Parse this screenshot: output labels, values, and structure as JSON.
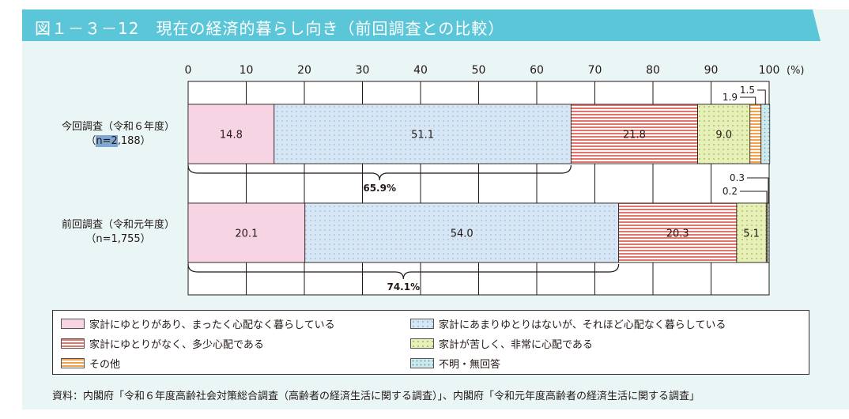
{
  "header": {
    "title": "図１－３－12　現在の経済的暮らし向き（前回調査との比較）"
  },
  "chart_data": {
    "type": "bar",
    "orientation": "horizontal",
    "stacked": true,
    "xlim": [
      0,
      100
    ],
    "x_ticks": [
      "0",
      "10",
      "20",
      "30",
      "40",
      "50",
      "60",
      "70",
      "80",
      "90",
      "100"
    ],
    "x_unit": "(%)",
    "categories": [
      {
        "label": "今回調査（令和６年度）",
        "n_prefix": "（",
        "n_highlight": "n=2",
        "n_rest": ",188）"
      },
      {
        "label": "前回調査（令和元年度）",
        "n_prefix": "（",
        "n_highlight": "",
        "n_rest": "n=1,755）"
      }
    ],
    "series": [
      {
        "name": "家計にゆとりがあり、まったく心配なく暮らしている",
        "values": [
          14.8,
          20.1
        ],
        "labels": [
          "14.8",
          "20.1"
        ],
        "pattern": "solid",
        "color": "#f7d4e3"
      },
      {
        "name": "家計にあまりゆとりはないが、それほど心配なく暮らしている",
        "values": [
          51.1,
          54.0
        ],
        "labels": [
          "51.1",
          "54.0"
        ],
        "pattern": "dots",
        "color": "#d6e6f5"
      },
      {
        "name": "家計にゆとりがなく、多少心配である",
        "values": [
          21.8,
          20.3
        ],
        "labels": [
          "21.8",
          "20.3"
        ],
        "pattern": "stripes",
        "color": "#e5746a"
      },
      {
        "name": "家計が苦しく、非常に心配である",
        "values": [
          9.0,
          5.1
        ],
        "labels": [
          "9.0",
          "5.1"
        ],
        "pattern": "dots",
        "color": "#e6f0b8"
      },
      {
        "name": "その他",
        "values": [
          1.9,
          0.2
        ],
        "labels": [
          "1.9",
          "0.2"
        ],
        "pattern": "stripes",
        "color": "#f5a14a"
      },
      {
        "name": "不明・無回答",
        "values": [
          1.5,
          0.3
        ],
        "labels": [
          "1.5",
          "0.3"
        ],
        "pattern": "dots",
        "color": "#cfe8ec"
      }
    ],
    "brackets": [
      "65.9%",
      "74.1%"
    ],
    "grid": true,
    "legend_placement": "bottom"
  },
  "source": "資料：内閣府「令和６年度高齢社会対策総合調査（高齢者の経済生活に関する調査）」、内閣府「令和元年度高齢者の経済生活に関する調査」"
}
